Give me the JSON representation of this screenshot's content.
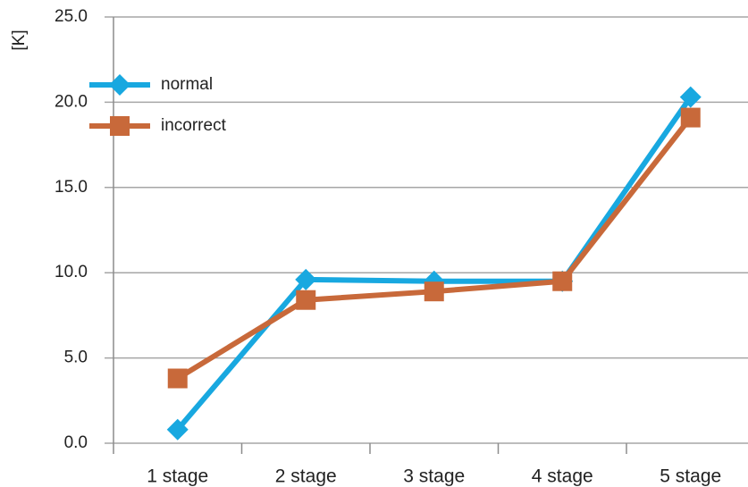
{
  "chart_data": {
    "type": "line",
    "y_label": "[K]",
    "categories": [
      "1 stage",
      "2 stage",
      "3 stage",
      "4 stage",
      "5 stage"
    ],
    "series": [
      {
        "name": "normal",
        "color": "#18a8e0",
        "marker": "diamond",
        "values": [
          0.8,
          9.6,
          9.5,
          9.5,
          20.3
        ]
      },
      {
        "name": "incorrect",
        "color": "#c8693a",
        "marker": "square",
        "values": [
          3.8,
          8.4,
          8.9,
          9.5,
          19.1
        ]
      }
    ],
    "ylim": [
      0,
      25
    ],
    "yticks": [
      {
        "value": 0,
        "label": "0.0"
      },
      {
        "value": 5,
        "label": "5.0"
      },
      {
        "value": 10,
        "label": "10.0"
      },
      {
        "value": 15,
        "label": "15.0"
      },
      {
        "value": 20,
        "label": "20.0"
      },
      {
        "value": 25,
        "label": "25.0"
      }
    ],
    "grid": true,
    "legend": "top-left"
  }
}
